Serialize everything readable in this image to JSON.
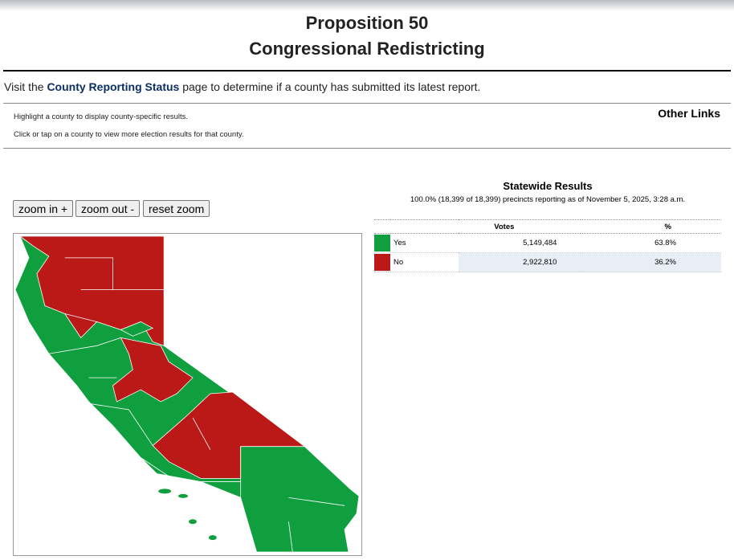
{
  "header": {
    "title": "Proposition 50",
    "subtitle": "Congressional Redistricting"
  },
  "intro": {
    "before": "Visit the ",
    "link": "County Reporting Status",
    "after": " page to determine if a county has submitted its latest report."
  },
  "instructions": [
    "Highlight a county to display county-specific results.",
    "Click or tap on a county to view more election results for that county."
  ],
  "other_links": "Other Links",
  "zoom_buttons": [
    "zoom in +",
    "zoom out -",
    "reset zoom"
  ],
  "results": {
    "title": "Statewide Results",
    "status": "100.0% (18,399 of 18,399) precincts reporting as of November 5, 2025, 3:28 a.m.",
    "columns": [
      "Votes",
      "%"
    ],
    "rows": [
      {
        "choice": "Yes",
        "votes": "5,149,484",
        "percent": "63.8%"
      },
      {
        "choice": "No",
        "votes": "2,922,810",
        "percent": "36.2%"
      }
    ]
  }
}
